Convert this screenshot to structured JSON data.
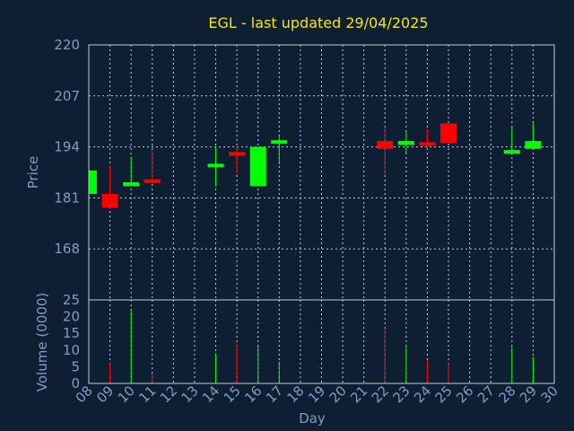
{
  "chart_data": [
    {
      "type": "candlestick",
      "title": "EGL - last updated 29/04/2025",
      "ylabel": "Price",
      "ylim": [
        155,
        220
      ],
      "yticks": [
        "220",
        "207",
        "194",
        "181",
        "168"
      ],
      "grid": true,
      "colors": {
        "up": "#00ff00",
        "down": "#ff0000",
        "background": "#0f1f33",
        "title": "#f5e60f",
        "axis": "#7d9dc6"
      },
      "candles": [
        {
          "day": "08",
          "open": 182,
          "high": 188,
          "low": 182,
          "close": 188
        },
        {
          "day": "09",
          "open": 182,
          "high": 189,
          "low": 178.5,
          "close": 178.5
        },
        {
          "day": "10",
          "open": 184,
          "high": 191.5,
          "low": 184,
          "close": 185
        },
        {
          "day": "11",
          "open": 185.5,
          "high": 193,
          "low": 184.5,
          "close": 185
        },
        {
          "day": "14",
          "open": 189,
          "high": 194,
          "low": 184,
          "close": 189.5
        },
        {
          "day": "15",
          "open": 192.5,
          "high": 194,
          "low": 187,
          "close": 192
        },
        {
          "day": "16",
          "open": 184,
          "high": 194,
          "low": 184,
          "close": 194
        },
        {
          "day": "17",
          "open": 195,
          "high": 197,
          "low": 189.5,
          "close": 195.5
        },
        {
          "day": "22",
          "open": 195.5,
          "high": 199,
          "low": 187,
          "close": 193.5
        },
        {
          "day": "23",
          "open": 194.5,
          "high": 198,
          "low": 192.5,
          "close": 195.5
        },
        {
          "day": "24",
          "open": 195,
          "high": 198.5,
          "low": 194,
          "close": 194.5
        },
        {
          "day": "25",
          "open": 200,
          "high": 200,
          "low": 195,
          "close": 195
        },
        {
          "day": "28",
          "open": 192.5,
          "high": 199,
          "low": 192.5,
          "close": 193
        },
        {
          "day": "29",
          "open": 193.5,
          "high": 200,
          "low": 193.5,
          "close": 195.5
        }
      ]
    },
    {
      "type": "bar",
      "ylabel": "Volume (0000)",
      "xlabel": "Day",
      "ylim": [
        0,
        25
      ],
      "yticks": [
        "25",
        "20",
        "15",
        "10",
        "5",
        "0"
      ],
      "categories": [
        "08",
        "09",
        "10",
        "11",
        "12",
        "13",
        "14",
        "15",
        "16",
        "17",
        "18",
        "19",
        "20",
        "21",
        "22",
        "23",
        "24",
        "25",
        "26",
        "27",
        "28",
        "29",
        "30"
      ],
      "values": [
        {
          "day": "09",
          "value": 6,
          "dir": "down"
        },
        {
          "day": "10",
          "value": 22,
          "dir": "up"
        },
        {
          "day": "11",
          "value": 3,
          "dir": "down"
        },
        {
          "day": "14",
          "value": 9,
          "dir": "up"
        },
        {
          "day": "15",
          "value": 12,
          "dir": "down"
        },
        {
          "day": "16",
          "value": 11,
          "dir": "up"
        },
        {
          "day": "17",
          "value": 6.5,
          "dir": "up"
        },
        {
          "day": "22",
          "value": 16.5,
          "dir": "down"
        },
        {
          "day": "23",
          "value": 11,
          "dir": "up"
        },
        {
          "day": "24",
          "value": 7,
          "dir": "down"
        },
        {
          "day": "25",
          "value": 6,
          "dir": "down"
        },
        {
          "day": "28",
          "value": 11,
          "dir": "up"
        },
        {
          "day": "29",
          "value": 8,
          "dir": "up"
        }
      ]
    }
  ]
}
